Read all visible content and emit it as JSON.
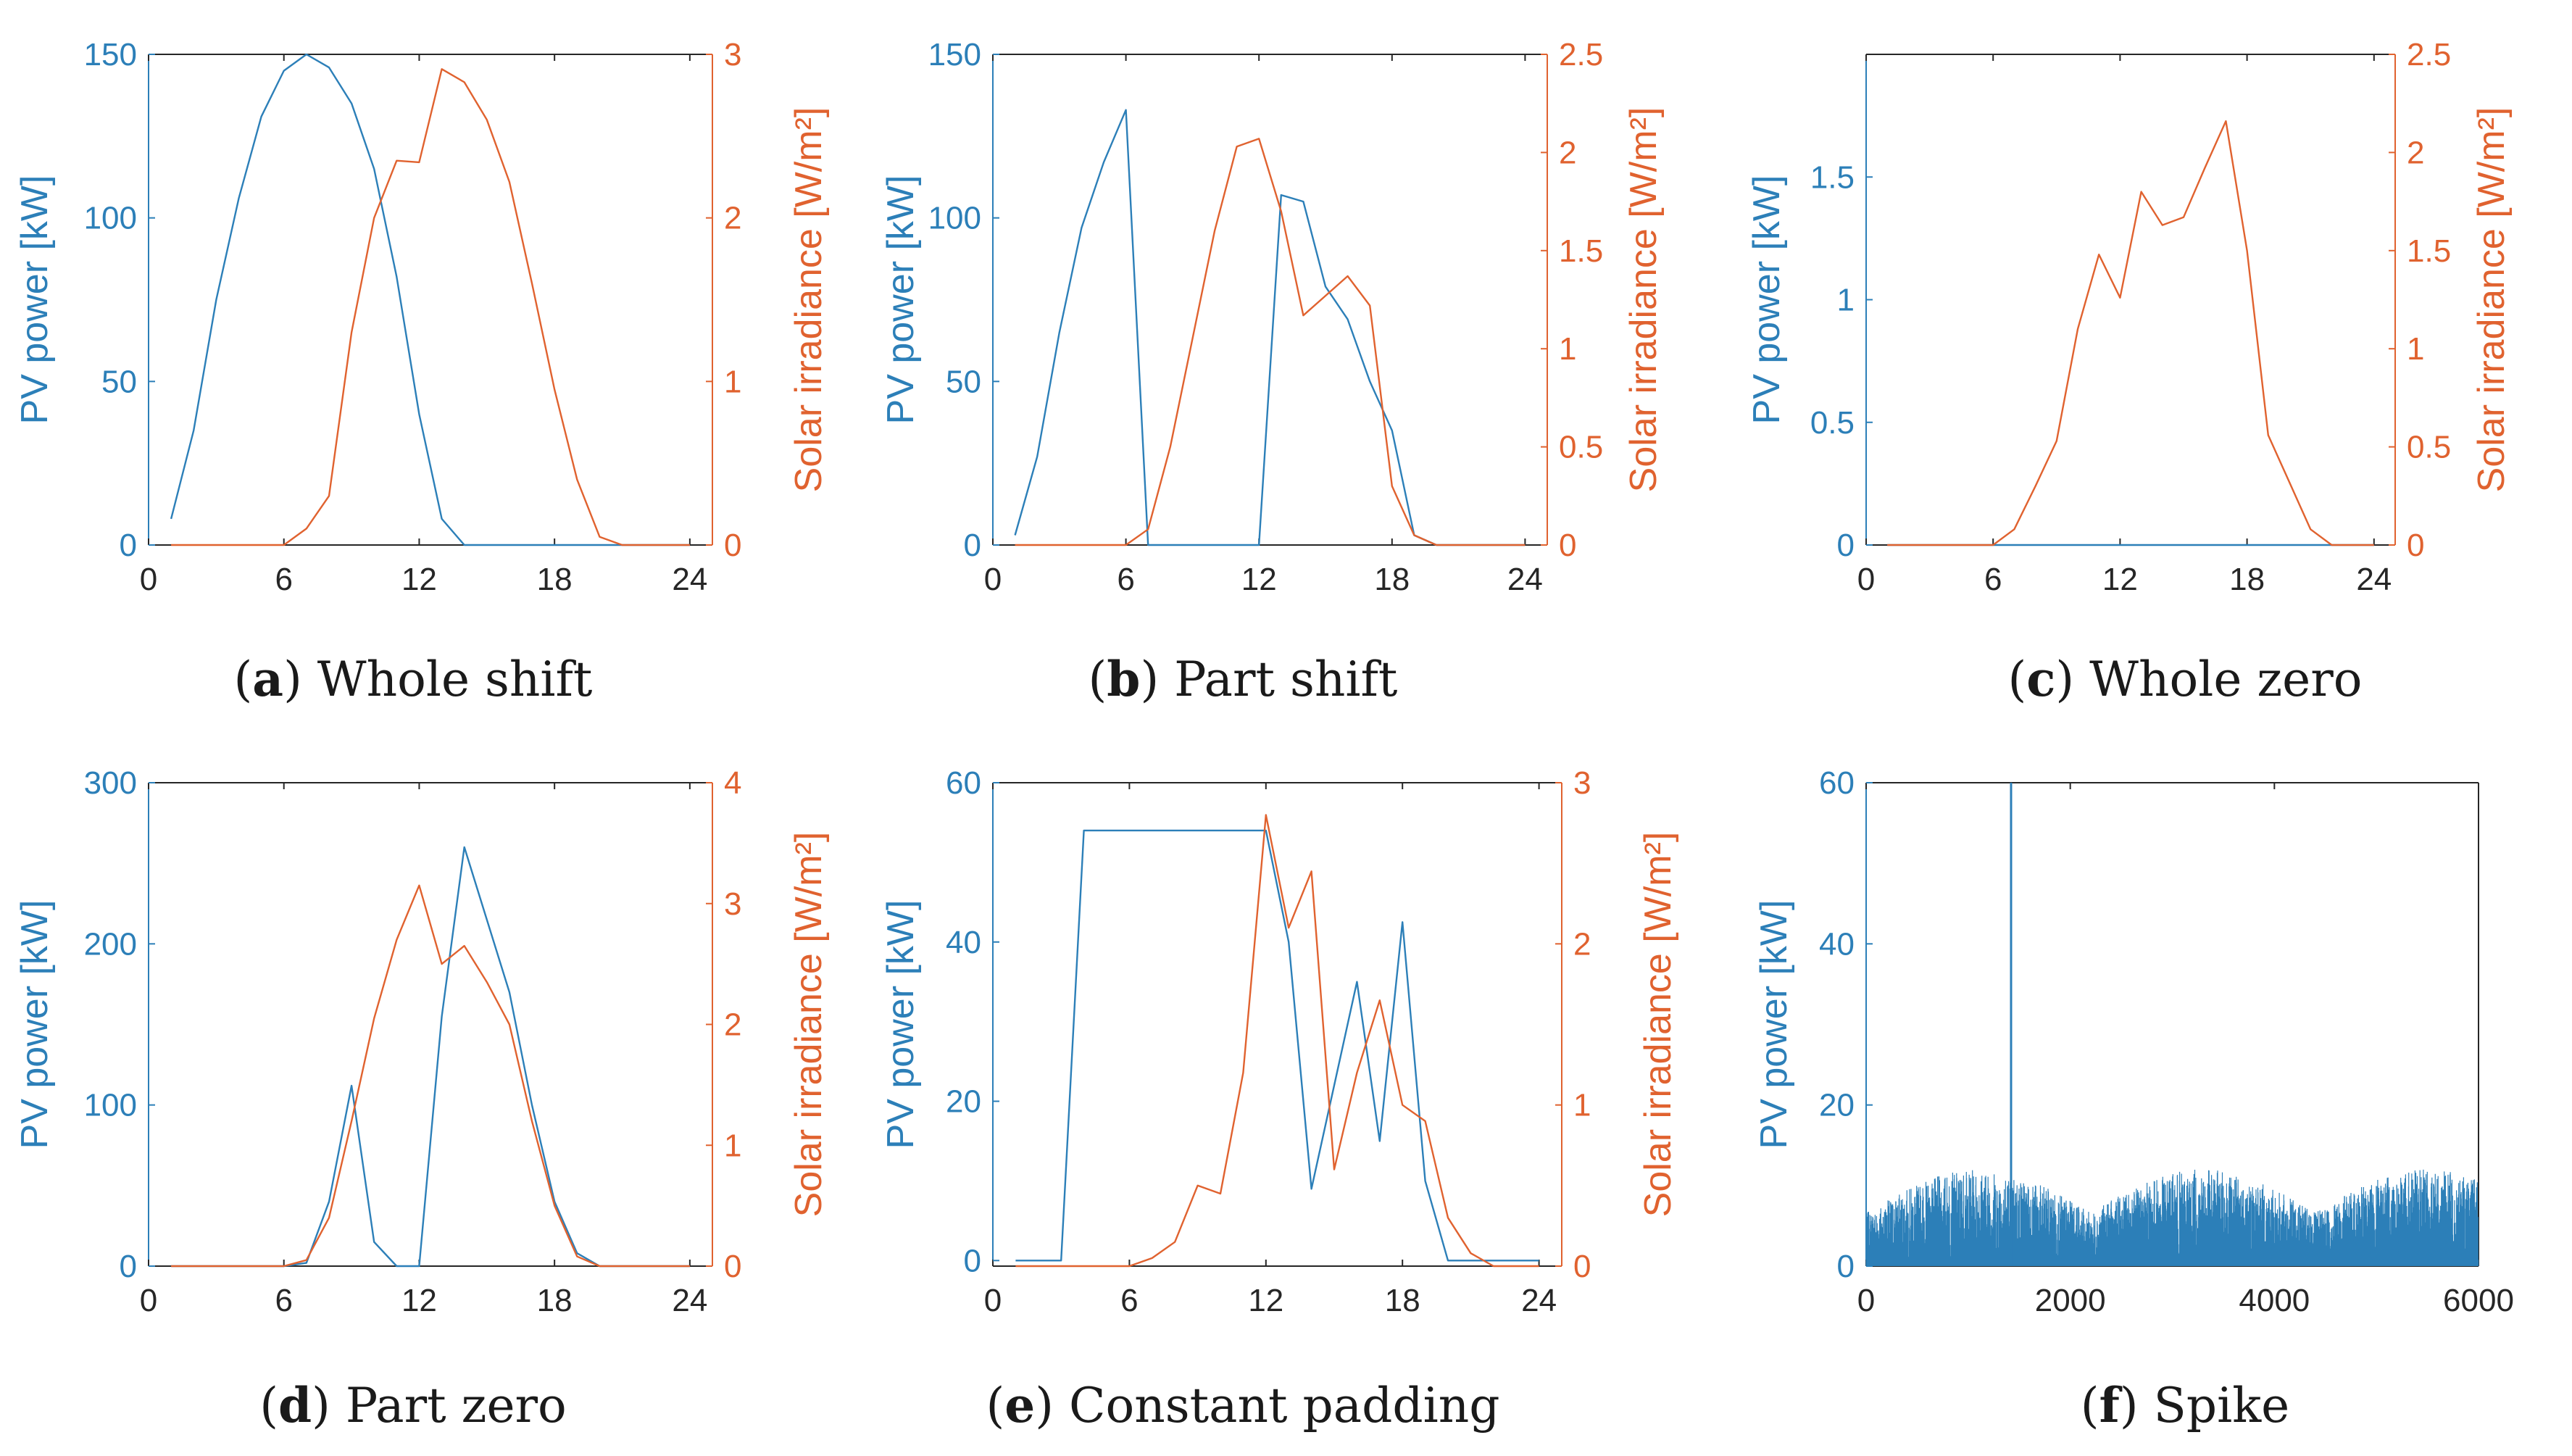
{
  "figure": {
    "colors": {
      "pv": "#2C7FB8",
      "irr": "#E0622F",
      "axis": "#262626"
    }
  },
  "chart_data": [
    {
      "id": "a",
      "type": "line",
      "caption_letter": "a",
      "caption_text": " Whole shift",
      "xlim": [
        0,
        25
      ],
      "xticks": [
        "0",
        "6",
        "12",
        "18",
        "24"
      ],
      "xtick_values": [
        0,
        6,
        12,
        18,
        24
      ],
      "left_axis": {
        "label": "PV power [kW]",
        "lim": [
          0,
          150
        ],
        "ticks": [
          "0",
          "50",
          "100",
          "150"
        ],
        "tick_values": [
          0,
          50,
          100,
          150
        ]
      },
      "right_axis": {
        "label": "Solar irradiance [W/m²]",
        "lim": [
          0,
          3
        ],
        "ticks": [
          "0",
          "1",
          "2",
          "3"
        ],
        "tick_values": [
          0,
          1,
          2,
          3
        ]
      },
      "series": [
        {
          "name": "PV power",
          "axis": "left",
          "x": [
            1,
            2,
            3,
            4,
            5,
            6,
            7,
            8,
            9,
            10,
            11,
            12,
            13,
            14,
            15,
            16,
            17,
            18,
            19,
            20,
            21,
            22,
            23,
            24
          ],
          "y": [
            8,
            35,
            75,
            106,
            131,
            145,
            150,
            146,
            135,
            115,
            82,
            40,
            8,
            0,
            0,
            0,
            0,
            0,
            0,
            0,
            0,
            0,
            0,
            0
          ]
        },
        {
          "name": "Solar irradiance",
          "axis": "right",
          "x": [
            1,
            2,
            3,
            4,
            5,
            6,
            7,
            8,
            9,
            10,
            11,
            12,
            13,
            14,
            15,
            16,
            17,
            18,
            19,
            20,
            21,
            22,
            23,
            24
          ],
          "y": [
            0,
            0,
            0,
            0,
            0,
            0,
            0.1,
            0.3,
            1.3,
            2,
            2.35,
            2.34,
            2.91,
            2.83,
            2.6,
            2.22,
            1.6,
            0.95,
            0.4,
            0.05,
            0,
            0,
            0,
            0
          ]
        }
      ]
    },
    {
      "id": "b",
      "type": "line",
      "caption_letter": "b",
      "caption_text": " Part shift",
      "xlim": [
        0,
        25
      ],
      "xticks": [
        "0",
        "6",
        "12",
        "18",
        "24"
      ],
      "xtick_values": [
        0,
        6,
        12,
        18,
        24
      ],
      "left_axis": {
        "label": "PV power [kW]",
        "lim": [
          0,
          150
        ],
        "ticks": [
          "0",
          "50",
          "100",
          "150"
        ],
        "tick_values": [
          0,
          50,
          100,
          150
        ]
      },
      "right_axis": {
        "label": "Solar irradiance [W/m²]",
        "lim": [
          0,
          2.5
        ],
        "ticks": [
          "0",
          "0.5",
          "1",
          "1.5",
          "2",
          "2.5"
        ],
        "tick_values": [
          0,
          0.5,
          1,
          1.5,
          2,
          2.5
        ]
      },
      "series": [
        {
          "name": "PV power",
          "axis": "left",
          "x": [
            1,
            2,
            3,
            4,
            5,
            6,
            7,
            8,
            9,
            10,
            11,
            12,
            13,
            14,
            15,
            16,
            17,
            18,
            19,
            20,
            21,
            22,
            23,
            24
          ],
          "y": [
            3,
            27,
            65,
            97,
            117,
            133,
            0,
            0,
            0,
            0,
            0,
            0,
            107,
            105,
            79,
            69,
            50,
            35,
            3,
            0,
            0,
            0,
            0,
            0
          ]
        },
        {
          "name": "Solar irradiance",
          "axis": "right",
          "x": [
            1,
            2,
            3,
            4,
            5,
            6,
            7,
            8,
            9,
            10,
            11,
            12,
            13,
            14,
            15,
            16,
            17,
            18,
            19,
            20,
            21,
            22,
            23,
            24
          ],
          "y": [
            0,
            0,
            0,
            0,
            0,
            0,
            0.08,
            0.5,
            1.05,
            1.6,
            2.03,
            2.07,
            1.7,
            1.17,
            1.27,
            1.37,
            1.22,
            0.3,
            0.05,
            0,
            0,
            0,
            0,
            0
          ]
        }
      ]
    },
    {
      "id": "c",
      "type": "line",
      "caption_letter": "c",
      "caption_text": " Whole zero",
      "xlim": [
        0,
        25
      ],
      "xticks": [
        "0",
        "6",
        "12",
        "18",
        "24"
      ],
      "xtick_values": [
        0,
        6,
        12,
        18,
        24
      ],
      "left_axis": {
        "label": "PV power [kW]",
        "lim": [
          0,
          2
        ],
        "ticks": [
          "0",
          "0.5",
          "1",
          "1.5"
        ],
        "tick_values": [
          0,
          0.5,
          1,
          1.5
        ]
      },
      "right_axis": {
        "label": "Solar irradiance [W/m²]",
        "lim": [
          0,
          2.5
        ],
        "ticks": [
          "0",
          "0.5",
          "1",
          "1.5",
          "2",
          "2.5"
        ],
        "tick_values": [
          0,
          0.5,
          1,
          1.5,
          2,
          2.5
        ]
      },
      "series": [
        {
          "name": "PV power",
          "axis": "left",
          "x": [
            1,
            2,
            3,
            4,
            5,
            6,
            7,
            8,
            9,
            10,
            11,
            12,
            13,
            14,
            15,
            16,
            17,
            18,
            19,
            20,
            21,
            22,
            23,
            24
          ],
          "y": [
            0,
            0,
            0,
            0,
            0,
            0,
            0,
            0,
            0,
            0,
            0,
            0,
            0,
            0,
            0,
            0,
            0,
            0,
            0,
            0,
            0,
            0,
            0,
            0
          ]
        },
        {
          "name": "Solar irradiance",
          "axis": "right",
          "x": [
            1,
            2,
            3,
            4,
            5,
            6,
            7,
            8,
            9,
            10,
            11,
            12,
            13,
            14,
            15,
            16,
            17,
            18,
            19,
            20,
            21,
            22,
            23,
            24
          ],
          "y": [
            0,
            0,
            0,
            0,
            0,
            0,
            0.08,
            0.3,
            0.53,
            1.1,
            1.48,
            1.26,
            1.8,
            1.63,
            1.67,
            1.92,
            2.16,
            1.5,
            0.56,
            0.32,
            0.08,
            0,
            0,
            0
          ]
        }
      ]
    },
    {
      "id": "d",
      "type": "line",
      "caption_letter": "d",
      "caption_text": " Part zero",
      "xlim": [
        0,
        25
      ],
      "xticks": [
        "0",
        "6",
        "12",
        "18",
        "24"
      ],
      "xtick_values": [
        0,
        6,
        12,
        18,
        24
      ],
      "left_axis": {
        "label": "PV power [kW]",
        "lim": [
          0,
          300
        ],
        "ticks": [
          "0",
          "100",
          "200",
          "300"
        ],
        "tick_values": [
          0,
          100,
          200,
          300
        ]
      },
      "right_axis": {
        "label": "Solar irradiance [W/m²]",
        "lim": [
          0,
          4
        ],
        "ticks": [
          "0",
          "1",
          "2",
          "3",
          "4"
        ],
        "tick_values": [
          0,
          1,
          2,
          3,
          4
        ]
      },
      "series": [
        {
          "name": "PV power",
          "axis": "left",
          "x": [
            1,
            2,
            3,
            4,
            5,
            6,
            7,
            8,
            9,
            10,
            11,
            12,
            13,
            14,
            15,
            16,
            17,
            18,
            19,
            20,
            21,
            22,
            23,
            24
          ],
          "y": [
            0,
            0,
            0,
            0,
            0,
            0,
            2,
            40,
            112,
            15,
            0,
            0,
            155,
            260,
            215,
            170,
            100,
            40,
            8,
            0,
            0,
            0,
            0,
            0
          ]
        },
        {
          "name": "Solar irradiance",
          "axis": "right",
          "x": [
            1,
            2,
            3,
            4,
            5,
            6,
            7,
            8,
            9,
            10,
            11,
            12,
            13,
            14,
            15,
            16,
            17,
            18,
            19,
            20,
            21,
            22,
            23,
            24
          ],
          "y": [
            0,
            0,
            0,
            0,
            0,
            0,
            0.05,
            0.4,
            1.2,
            2.05,
            2.7,
            3.15,
            2.5,
            2.65,
            2.35,
            2,
            1.2,
            0.5,
            0.08,
            0,
            0,
            0,
            0,
            0
          ]
        }
      ]
    },
    {
      "id": "e",
      "type": "line",
      "caption_letter": "e",
      "caption_text": " Constant padding",
      "xlim": [
        0,
        25
      ],
      "xticks": [
        "0",
        "6",
        "12",
        "18",
        "24"
      ],
      "xtick_values": [
        0,
        6,
        12,
        18,
        24
      ],
      "left_axis": {
        "label": "PV power [kW]",
        "lim": [
          -0.7,
          60
        ],
        "ticks": [
          "0",
          "20",
          "40",
          "60"
        ],
        "tick_values": [
          0,
          20,
          40,
          60
        ]
      },
      "right_axis": {
        "label": "Solar irradiance [W/m²]",
        "lim": [
          0,
          3
        ],
        "ticks": [
          "0",
          "1",
          "2",
          "3"
        ],
        "tick_values": [
          0,
          1,
          2,
          3
        ]
      },
      "series": [
        {
          "name": "PV power",
          "axis": "left",
          "x": [
            1,
            2,
            3,
            4,
            5,
            6,
            7,
            8,
            9,
            10,
            11,
            12,
            13,
            14,
            15,
            16,
            17,
            18,
            19,
            20,
            21,
            22,
            23,
            24
          ],
          "y": [
            0,
            0,
            0,
            54,
            54,
            54,
            54,
            54,
            54,
            54,
            54,
            54,
            40,
            9,
            22,
            35,
            15,
            42.5,
            10,
            0,
            0,
            0,
            0,
            0
          ]
        },
        {
          "name": "Solar irradiance",
          "axis": "right",
          "x": [
            1,
            2,
            3,
            4,
            5,
            6,
            7,
            8,
            9,
            10,
            11,
            12,
            13,
            14,
            15,
            16,
            17,
            18,
            19,
            20,
            21,
            22,
            23,
            24
          ],
          "y": [
            0,
            0,
            0,
            0,
            0,
            0,
            0.05,
            0.15,
            0.5,
            0.45,
            1.2,
            2.8,
            2.1,
            2.45,
            0.6,
            1.2,
            1.65,
            1,
            0.9,
            0.3,
            0.08,
            0,
            0,
            0
          ]
        }
      ]
    },
    {
      "id": "f",
      "type": "line",
      "caption_letter": "f",
      "caption_text": " Spike",
      "xlim": [
        0,
        6000
      ],
      "xticks": [
        "0",
        "2000",
        "4000",
        "6000"
      ],
      "xtick_values": [
        0,
        2000,
        4000,
        6000
      ],
      "left_axis": {
        "label": "PV power [kW]",
        "lim": [
          0,
          60
        ],
        "ticks": [
          "0",
          "20",
          "40",
          "60"
        ],
        "tick_values": [
          0,
          20,
          40,
          60
        ]
      },
      "right_axis": null,
      "noise": {
        "count": 6000,
        "max_envelope": 12,
        "seed": 7
      },
      "spike": {
        "x": 1420,
        "y": 60
      },
      "series": [
        {
          "name": "PV power",
          "axis": "left",
          "description_values": {
            "x_range": [
              0,
              6000
            ],
            "typical_max": 12,
            "spike_x": 1420,
            "spike_y": 60
          }
        }
      ]
    }
  ]
}
